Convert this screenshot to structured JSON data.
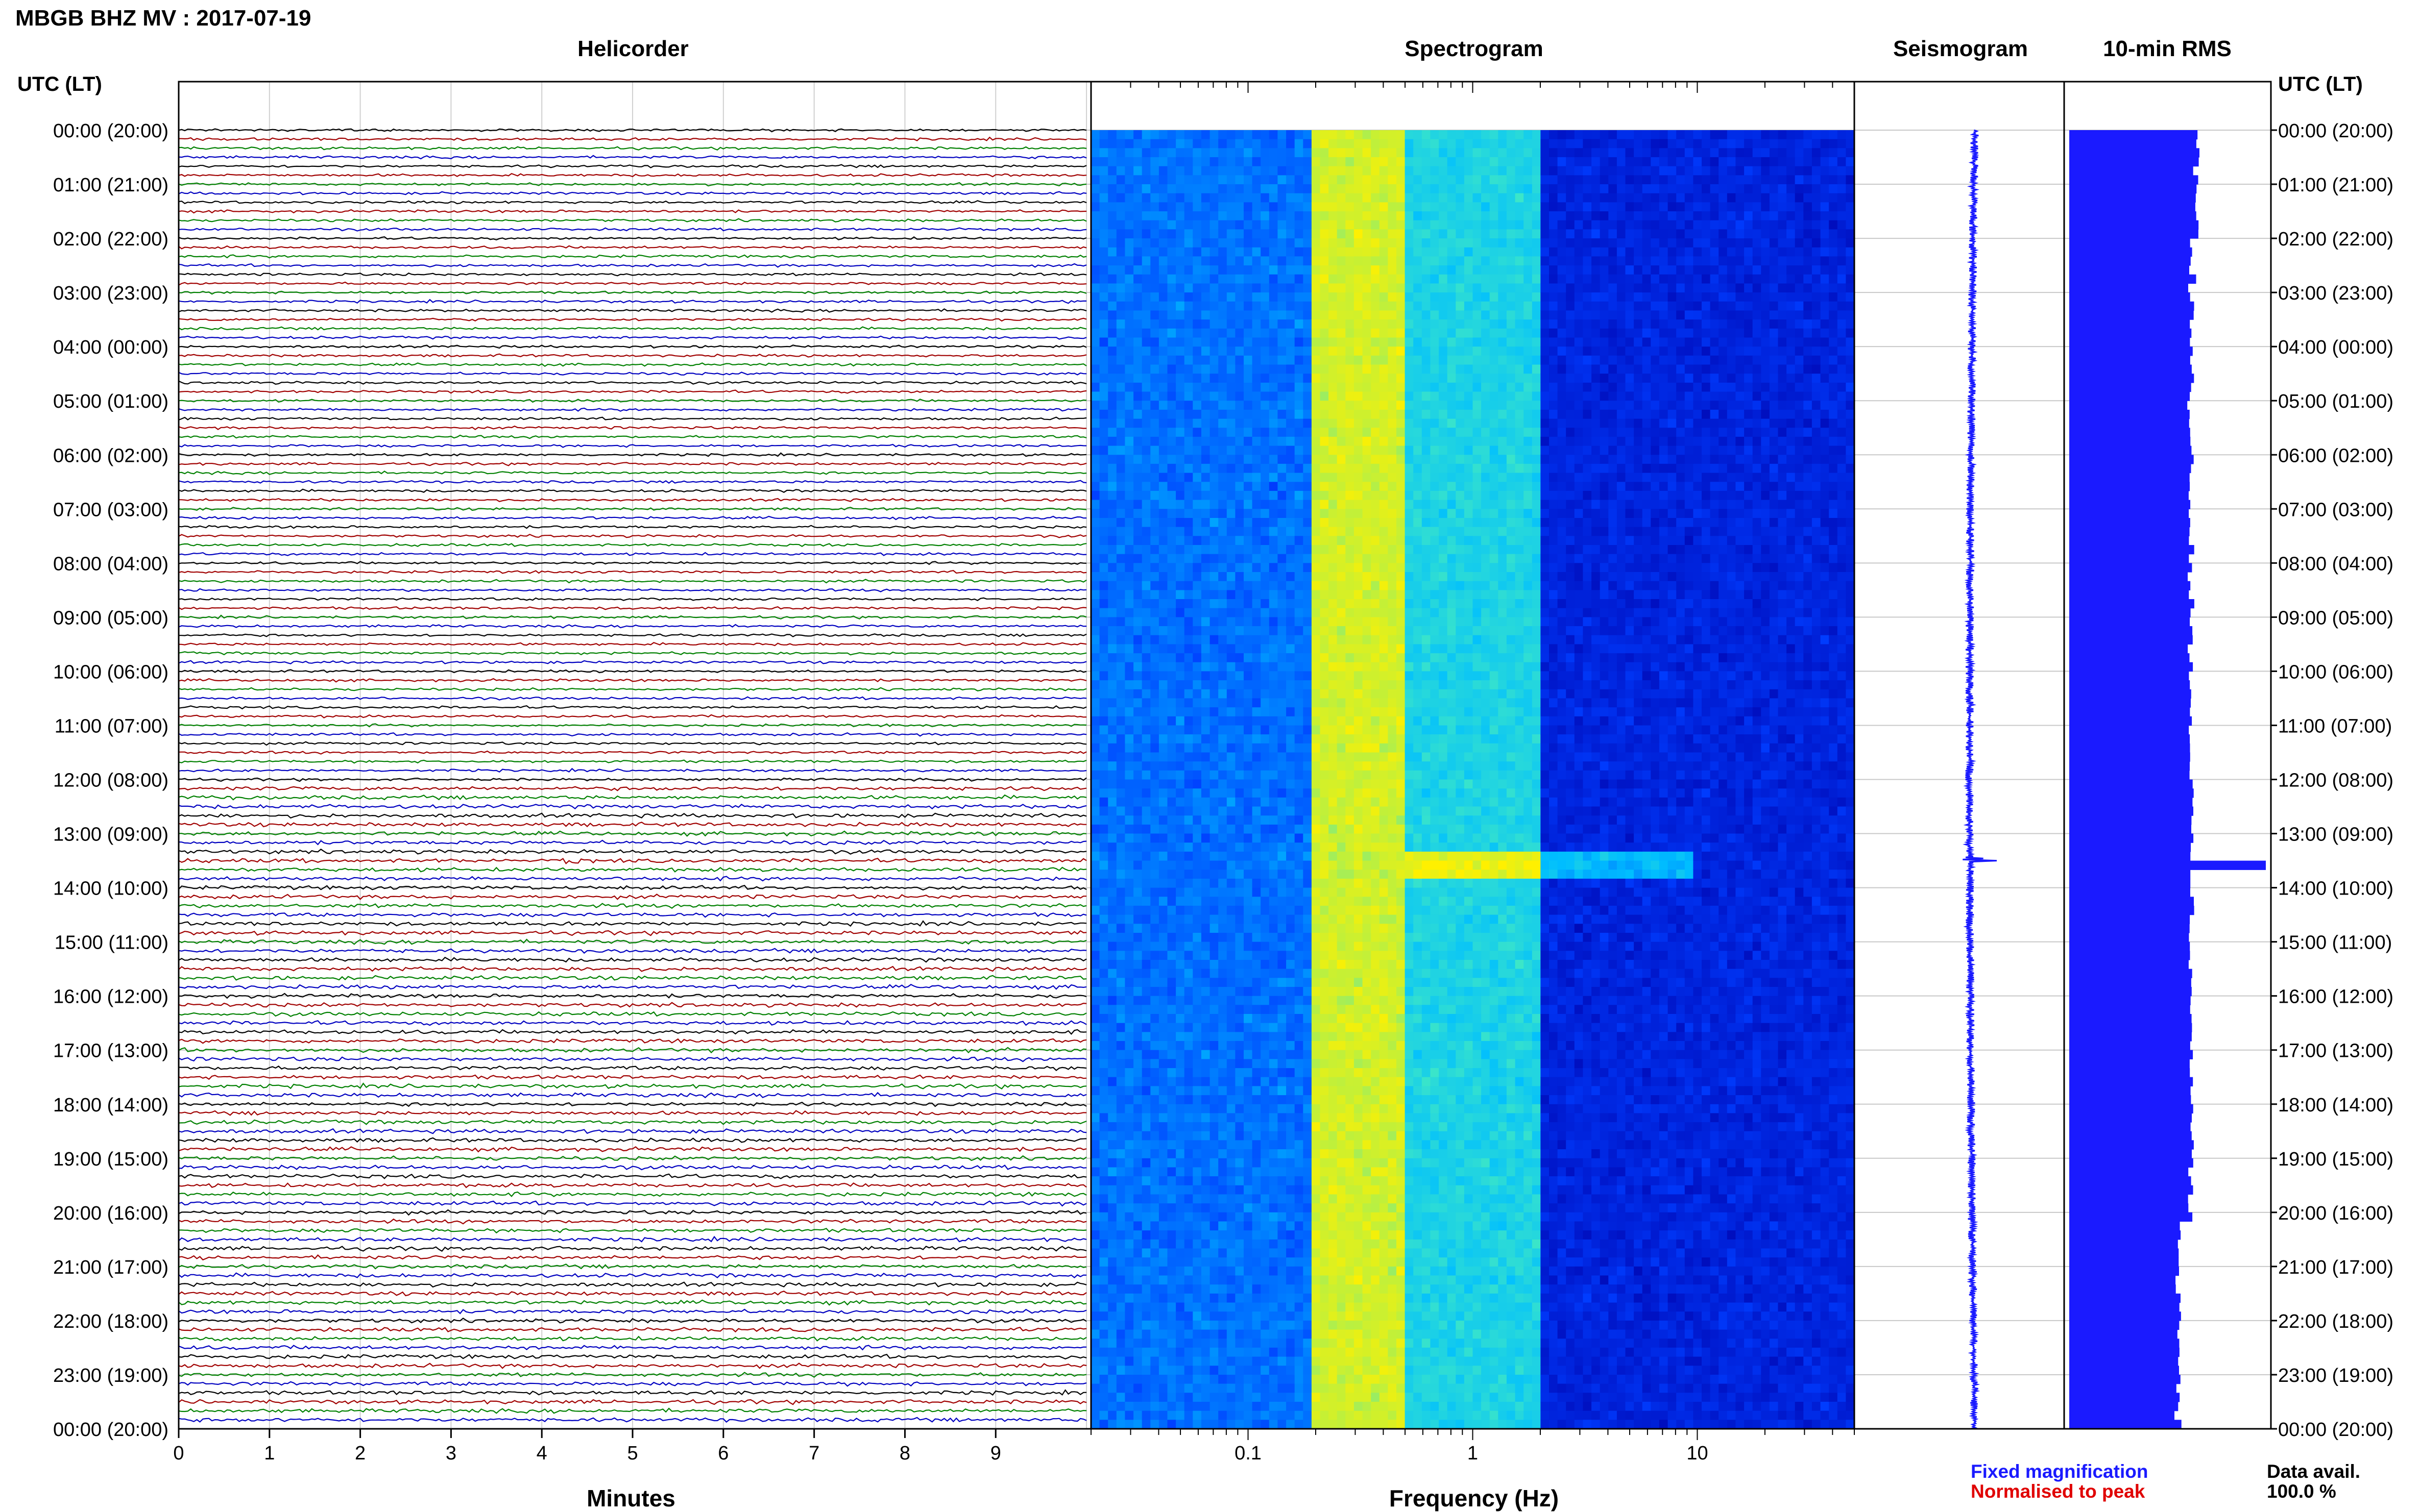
{
  "title": "MBGB BHZ MV : 2017-07-19",
  "utc_header": "UTC (LT)",
  "colors": {
    "trace_cycle": [
      "#000000",
      "#a00000",
      "#008000",
      "#0000c0"
    ],
    "seismogram": "#1a1aff",
    "rms": "#1a1aff",
    "fixed_magnification": "#1a1aff",
    "normalised_to_peak": "#e00000"
  },
  "time_labels": [
    "00:00 (20:00)",
    "01:00 (21:00)",
    "02:00 (22:00)",
    "03:00 (23:00)",
    "04:00 (00:00)",
    "05:00 (01:00)",
    "06:00 (02:00)",
    "07:00 (03:00)",
    "08:00 (04:00)",
    "09:00 (05:00)",
    "10:00 (06:00)",
    "11:00 (07:00)",
    "12:00 (08:00)",
    "13:00 (09:00)",
    "14:00 (10:00)",
    "15:00 (11:00)",
    "16:00 (12:00)",
    "17:00 (13:00)",
    "18:00 (14:00)",
    "19:00 (15:00)",
    "20:00 (16:00)",
    "21:00 (17:00)",
    "22:00 (18:00)",
    "23:00 (19:00)",
    "00:00 (20:00)"
  ],
  "footer": {
    "fixed_magnification": "Fixed magnification",
    "normalised_to_peak": "Normalised to peak",
    "data_avail_label": "Data avail.",
    "data_avail_value": "100.0 %"
  },
  "chart_data": [
    {
      "type": "line",
      "panel": "helicorder",
      "title": "Helicorder",
      "xlabel": "Minutes",
      "xlim": [
        0,
        10
      ],
      "x_ticks": [
        "0",
        "1",
        "2",
        "3",
        "4",
        "5",
        "6",
        "7",
        "8",
        "9"
      ],
      "rows": 144,
      "row_minutes": 10,
      "event": {
        "hour": 13.5,
        "minute_start": 3.5,
        "minute_end": 4.5,
        "peak_minute": 4.3
      }
    },
    {
      "type": "heatmap",
      "panel": "spectrogram",
      "title": "Spectrogram",
      "xlabel": "Frequency (Hz)",
      "xscale": "log",
      "xlim": [
        0.02,
        50
      ],
      "x_ticks": [
        "0.1",
        "1",
        "10"
      ],
      "ylim_hours": [
        0,
        24
      ],
      "bands": [
        {
          "freq_from": 0.02,
          "freq_to": 0.2,
          "level": 0.35
        },
        {
          "freq_from": 0.2,
          "freq_to": 0.5,
          "level": 0.9
        },
        {
          "freq_from": 0.5,
          "freq_to": 2,
          "level": 0.6
        },
        {
          "freq_from": 2,
          "freq_to": 50,
          "level": 0.15
        }
      ]
    },
    {
      "type": "line",
      "panel": "seismogram",
      "title": "Seismogram",
      "event_hour": 13.5
    },
    {
      "type": "bar",
      "panel": "rms",
      "title": "10-min RMS",
      "bins": 144,
      "bin_minutes": 10,
      "peak": {
        "hour": 13.5,
        "relative": 1.0
      },
      "typical_relative": 0.62
    }
  ]
}
